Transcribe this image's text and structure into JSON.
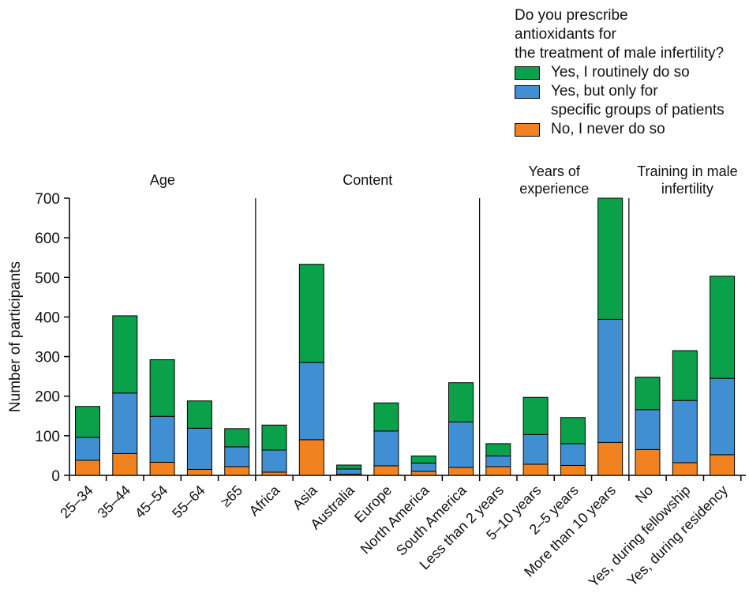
{
  "legend": {
    "title": "Do you prescribe\nantioxidants for\nthe treatment of male infertility?",
    "items": [
      {
        "label": "Yes, I routinely do so",
        "color": "#0aa14a"
      },
      {
        "label": "Yes, but only for\nspecific groups of patients",
        "color": "#3f8fd2"
      },
      {
        "label": "No, I never do so",
        "color": "#f2821f"
      }
    ]
  },
  "chart_data": {
    "type": "bar",
    "stacked": true,
    "ylabel": "Number of participants",
    "ylim": [
      0,
      700
    ],
    "yticks": [
      0,
      100,
      200,
      300,
      400,
      500,
      600,
      700
    ],
    "groups": [
      {
        "label": "Age",
        "categories": [
          "25–34",
          "35–44",
          "45–54",
          "55–64",
          "≥65"
        ]
      },
      {
        "label": "Content",
        "categories": [
          "Africa",
          "Asia",
          "Australia",
          "Europe",
          "North America",
          "South America"
        ]
      },
      {
        "label": "Years of\nexperience",
        "categories": [
          "Less than 2 years",
          "5–10 years",
          "2–5 years",
          "More than 10 years"
        ]
      },
      {
        "label": "Training in male\ninfertility",
        "categories": [
          "No",
          "Yes, during fellowship",
          "Yes, during residency"
        ]
      }
    ],
    "categories": [
      "25–34",
      "35–44",
      "45–54",
      "55–64",
      "≥65",
      "Africa",
      "Asia",
      "Australia",
      "Europe",
      "North America",
      "South America",
      "Less than 2 years",
      "5–10 years",
      "2–5 years",
      "More than 10 years",
      "No",
      "Yes, during fellowship",
      "Yes, during residency"
    ],
    "series": [
      {
        "name": "No, I never do so",
        "color": "#f2821f",
        "values": [
          38,
          55,
          33,
          15,
          22,
          8,
          90,
          3,
          24,
          10,
          20,
          22,
          28,
          25,
          83,
          65,
          32,
          52
        ]
      },
      {
        "name": "Yes, but only for specific groups of patients",
        "color": "#3f8fd2",
        "values": [
          58,
          153,
          116,
          104,
          50,
          56,
          195,
          13,
          88,
          21,
          115,
          27,
          75,
          55,
          311,
          101,
          157,
          193
        ]
      },
      {
        "name": "Yes, I routinely do so",
        "color": "#0aa14a",
        "values": [
          78,
          195,
          143,
          69,
          46,
          63,
          248,
          10,
          71,
          18,
          99,
          31,
          94,
          66,
          306,
          82,
          126,
          258
        ]
      }
    ]
  }
}
